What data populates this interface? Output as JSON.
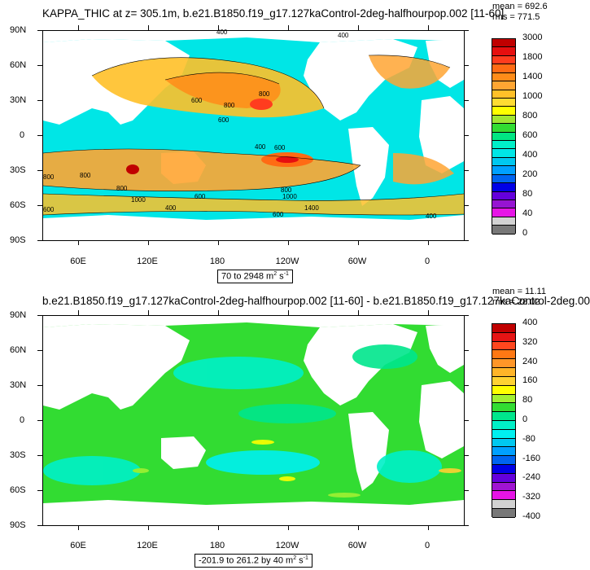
{
  "panel1": {
    "title": "KAPPA_THIC at z= 305.1m, b.e21.B1850.f19_g17.127kaControl-2deg-halfhourpop.002 [11-60]",
    "mean": "mean = 692.6",
    "rms": "rms = 771.5",
    "range_prefix": "70 to 2948 m",
    "units_sup1": "2",
    "units_s": " s",
    "units_sup2": "-1",
    "contour_labels": [
      "400",
      "400",
      "800",
      "600",
      "800",
      "600",
      "400",
      "600",
      "800",
      "800",
      "1000",
      "1400",
      "600",
      "800",
      "800",
      "1000",
      "600",
      "400",
      "600",
      "400"
    ],
    "colorbar": {
      "labels": [
        "3000",
        "1800",
        "1400",
        "1000",
        "800",
        "600",
        "400",
        "200",
        "80",
        "40",
        "0"
      ],
      "colors": [
        "#c00000",
        "#e60f0f",
        "#ff3c1e",
        "#ff6b14",
        "#ff8c19",
        "#ffa532",
        "#ffc028",
        "#ffdc32",
        "#ffff00",
        "#a0e632",
        "#32dc32",
        "#00e682",
        "#00f0c8",
        "#00e6e6",
        "#00c8f0",
        "#00a0ff",
        "#0064f0",
        "#0000e6",
        "#6400dc",
        "#9614d2",
        "#e614e6",
        "#d2d2d2",
        "#787878"
      ]
    }
  },
  "panel2": {
    "title": "b.e21.B1850.f19_g17.127kaControl-2deg-halfhourpop.002 [11-60] - b.e21.B1850.f19_g17.127kaControl-2deg.00",
    "mean": "mean = 11.11",
    "rms": "rms = 28.02",
    "range_prefix": "-201.9 to 261.2 by 40 m",
    "units_sup1": "2",
    "units_s": " s",
    "units_sup2": "-1",
    "colorbar": {
      "labels": [
        "400",
        "320",
        "240",
        "160",
        "80",
        "0",
        "-80",
        "-160",
        "-240",
        "-320",
        "-400"
      ],
      "colors": [
        "#c00000",
        "#e61414",
        "#ff461e",
        "#ff7814",
        "#ff9628",
        "#ffb428",
        "#ffd232",
        "#ffff00",
        "#a0f032",
        "#32dc32",
        "#00e68c",
        "#00f0c8",
        "#00f0f0",
        "#00c8f0",
        "#00a0ff",
        "#0064f0",
        "#0000e6",
        "#6400dc",
        "#a014d2",
        "#e614e6",
        "#d2d2d2",
        "#787878"
      ]
    }
  },
  "axes": {
    "lat_labels": [
      "90N",
      "60N",
      "30N",
      "0",
      "30S",
      "60S",
      "90S"
    ],
    "lon_labels": [
      "60E",
      "120E",
      "180",
      "120W",
      "60W",
      "0"
    ]
  }
}
